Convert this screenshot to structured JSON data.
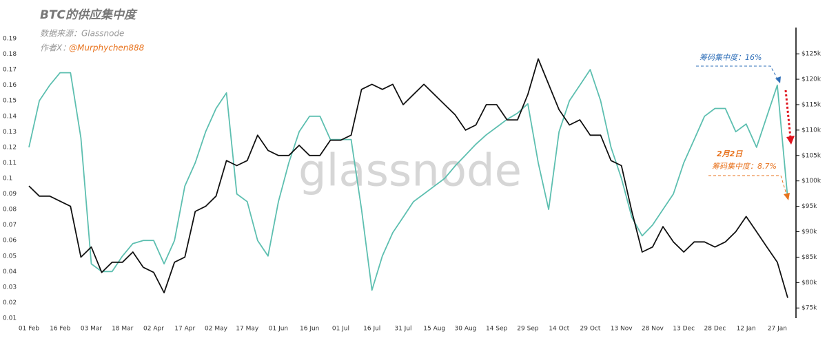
{
  "chart_data": {
    "type": "line",
    "title": "BTC的供应集中度",
    "source": "数据来源：Glassnode",
    "author_label": "作者X：",
    "author_handle": "@Murphychen888",
    "watermark": "glassnode",
    "annotations": [
      "筹码集中度：16%",
      "2月2日",
      "筹码集中度：8.7%"
    ],
    "categories": [
      "01 Feb",
      null,
      null,
      "16 Feb",
      null,
      null,
      "03 Mar",
      null,
      null,
      "18 Mar",
      null,
      null,
      "02 Apr",
      null,
      null,
      "17 Apr",
      null,
      null,
      "02 May",
      null,
      null,
      "17 May",
      null,
      null,
      "01 Jun",
      null,
      null,
      "16 Jun",
      null,
      null,
      "01 Jul",
      null,
      null,
      "16 Jul",
      null,
      null,
      "31 Jul",
      null,
      null,
      "15 Aug",
      null,
      null,
      "30 Aug",
      null,
      null,
      "14 Sep",
      null,
      null,
      "29 Sep",
      null,
      null,
      "14 Oct",
      null,
      null,
      "29 Oct",
      null,
      null,
      "13 Nov",
      null,
      null,
      "28 Nov",
      null,
      null,
      "13 Dec",
      null,
      null,
      "28 Dec",
      null,
      null,
      "12 Jan",
      null,
      null,
      "27 Jan",
      null
    ],
    "series": [
      {
        "name": "筹码集中度",
        "color": "#5dbfb0",
        "values": [
          0.12,
          0.15,
          0.16,
          0.168,
          0.168,
          0.126,
          0.045,
          0.04,
          0.04,
          0.05,
          0.058,
          0.06,
          0.06,
          0.045,
          0.06,
          0.095,
          0.11,
          0.13,
          0.145,
          0.155,
          0.09,
          0.085,
          0.06,
          0.05,
          0.085,
          0.11,
          0.13,
          0.14,
          0.14,
          0.125,
          0.125,
          0.125,
          0.08,
          0.028,
          0.05,
          0.065,
          0.075,
          0.085,
          0.09,
          0.095,
          0.1,
          0.108,
          0.115,
          0.122,
          0.128,
          0.133,
          0.138,
          0.142,
          0.148,
          0.11,
          0.08,
          0.13,
          0.15,
          0.16,
          0.17,
          0.15,
          0.12,
          0.1,
          0.075,
          0.063,
          0.07,
          0.08,
          0.09,
          0.11,
          0.125,
          0.14,
          0.145,
          0.145,
          0.13,
          0.135,
          0.12,
          0.14,
          0.16,
          0.087
        ]
      },
      {
        "name": "BTC",
        "color": "#111111",
        "axis": "y2",
        "values": [
          99000,
          97000,
          97000,
          96000,
          95000,
          85000,
          87000,
          82000,
          84000,
          84000,
          86000,
          83000,
          82000,
          78000,
          84000,
          85000,
          94000,
          95000,
          97000,
          104000,
          103000,
          104000,
          109000,
          106000,
          105000,
          105000,
          107000,
          105000,
          105000,
          108000,
          108000,
          109000,
          118000,
          119000,
          118000,
          119000,
          115000,
          117000,
          119000,
          117000,
          115000,
          113000,
          110000,
          111000,
          115000,
          115000,
          112000,
          112000,
          117000,
          124000,
          119000,
          114000,
          111000,
          112000,
          109000,
          109000,
          104000,
          103000,
          94000,
          86000,
          87000,
          91000,
          88000,
          86000,
          88000,
          88000,
          87000,
          88000,
          90000,
          93000,
          90000,
          87000,
          84000,
          77000
        ]
      }
    ],
    "ylim": [
      0.01,
      0.19
    ],
    "yticks": [
      0.01,
      0.02,
      0.03,
      0.04,
      0.05,
      0.06,
      0.07,
      0.08,
      0.09,
      0.1,
      0.11,
      0.12,
      0.13,
      0.14,
      0.15,
      0.16,
      0.17,
      0.18,
      0.19
    ],
    "y2lim": [
      73000,
      128000
    ],
    "y2ticks": [
      {
        "value": 75000,
        "label": "$75k"
      },
      {
        "value": 80000,
        "label": "$80k"
      },
      {
        "value": 85000,
        "label": "$85k"
      },
      {
        "value": 90000,
        "label": "$90k"
      },
      {
        "value": 95000,
        "label": "$95k"
      },
      {
        "value": 100000,
        "label": "$100k"
      },
      {
        "value": 105000,
        "label": "$105k"
      },
      {
        "value": 110000,
        "label": "$110k"
      },
      {
        "value": 115000,
        "label": "$115k"
      },
      {
        "value": 120000,
        "label": "$120k"
      },
      {
        "value": 125000,
        "label": "$125k"
      }
    ]
  }
}
